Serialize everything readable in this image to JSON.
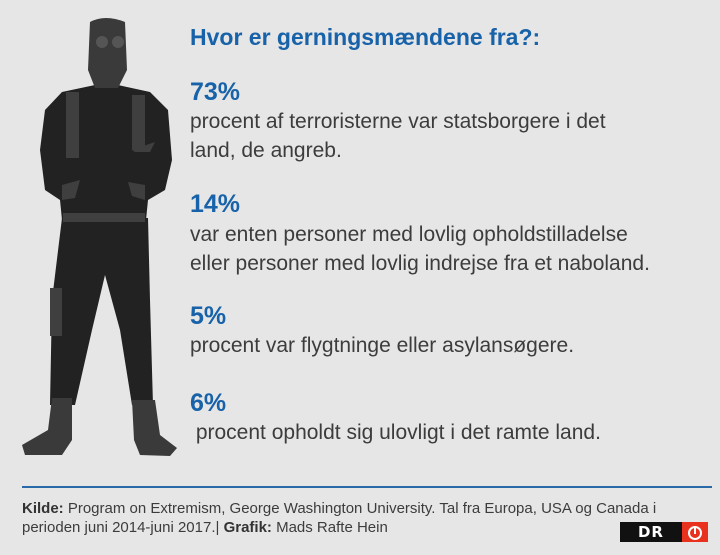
{
  "title": "Hvor er gerningsmændene fra?:",
  "stats": [
    {
      "value": "73%",
      "lines": [
        "procent af terroristerne var statsborgere i det",
        "land, de angreb."
      ]
    },
    {
      "value": "14%",
      "lines": [
        "var enten personer med lovlig opholdstilladelse",
        "eller personer med lovlig indrejse fra et naboland."
      ]
    },
    {
      "value": "5%",
      "lines": [
        "procent var flygtninge eller asylansøgere."
      ]
    },
    {
      "value": "6%",
      "lines": [
        " procent opholdt sig ulovligt i det ramte land."
      ]
    }
  ],
  "footer": {
    "source_label": "Kilde:",
    "source_text": " Program on Extremism, George Washington University. Tal fra Europa, USA og Canada i",
    "source_text_2": "perioden juni 2014-juni 2017.| ",
    "graphic_label": "Grafik:",
    "graphic_text": " Mads Rafte Hein"
  },
  "logo": {
    "text": "DR",
    "icon": "dr-eye-icon"
  },
  "illustration": {
    "icon": "person-silhouette-icon"
  },
  "colors": {
    "accent": "#1762a9",
    "background": "#e6e6e6",
    "text": "#3c3c3c",
    "logo_red": "#e8321e"
  }
}
